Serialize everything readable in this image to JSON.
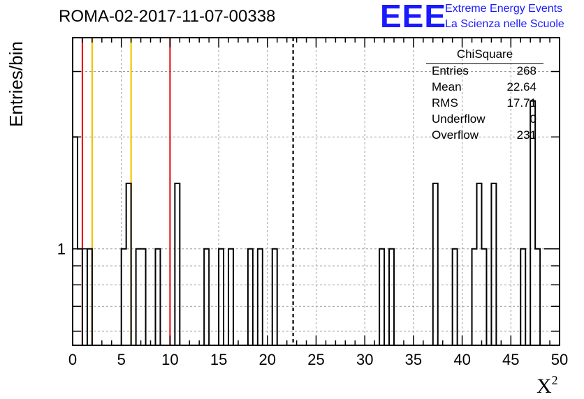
{
  "header": {
    "title": "ROMA-02-2017-11-07-00338",
    "ylabel": "Entries/bin",
    "xlabel": "X"
  },
  "logo": {
    "mark": "EEE",
    "line1": "Extreme Energy Events",
    "line2": "La Scienza nelle Scuole"
  },
  "stats": {
    "title": "ChiSquare",
    "rows": [
      {
        "key": "Entries",
        "value": "268"
      },
      {
        "key": "Mean",
        "value": "22.64"
      },
      {
        "key": "RMS",
        "value": "17.71"
      },
      {
        "key": "Underflow",
        "value": "0"
      },
      {
        "key": "Overflow",
        "value": "231"
      }
    ]
  },
  "chart_data": {
    "type": "bar",
    "xlim": [
      0,
      50
    ],
    "ylim": [
      0.55,
      3.7
    ],
    "log_y": true,
    "grid": true,
    "bin_width": 0.5,
    "bins": [
      {
        "x": 0.0,
        "y": 2
      },
      {
        "x": 0.5,
        "y": 1
      },
      {
        "x": 1.5,
        "y": 1
      },
      {
        "x": 5.0,
        "y": 1
      },
      {
        "x": 5.5,
        "y": 1.5
      },
      {
        "x": 6.5,
        "y": 1
      },
      {
        "x": 7.0,
        "y": 1
      },
      {
        "x": 8.5,
        "y": 1
      },
      {
        "x": 10.5,
        "y": 1.5
      },
      {
        "x": 13.5,
        "y": 1
      },
      {
        "x": 15.0,
        "y": 1
      },
      {
        "x": 16.0,
        "y": 1
      },
      {
        "x": 18.0,
        "y": 1
      },
      {
        "x": 19.0,
        "y": 1
      },
      {
        "x": 20.5,
        "y": 1
      },
      {
        "x": 31.5,
        "y": 1
      },
      {
        "x": 32.5,
        "y": 1
      },
      {
        "x": 37.0,
        "y": 1.5
      },
      {
        "x": 39.0,
        "y": 1
      },
      {
        "x": 41.0,
        "y": 1
      },
      {
        "x": 41.5,
        "y": 1.5
      },
      {
        "x": 42.0,
        "y": 1
      },
      {
        "x": 43.0,
        "y": 1.5
      },
      {
        "x": 46.0,
        "y": 1
      },
      {
        "x": 47.0,
        "y": 2.5
      },
      {
        "x": 47.5,
        "y": 1
      }
    ],
    "vlines": [
      {
        "x": 1,
        "color": "#e8191c"
      },
      {
        "x": 2,
        "color": "#f5c400"
      },
      {
        "x": 6,
        "color": "#f5c400"
      },
      {
        "x": 10,
        "color": "#e8191c"
      },
      {
        "x": 22.64,
        "color": "#000000",
        "dashed": true
      }
    ],
    "x_ticks": [
      0,
      5,
      10,
      15,
      20,
      25,
      30,
      35,
      40,
      45,
      50
    ],
    "y_tick_labels": [
      1
    ]
  }
}
